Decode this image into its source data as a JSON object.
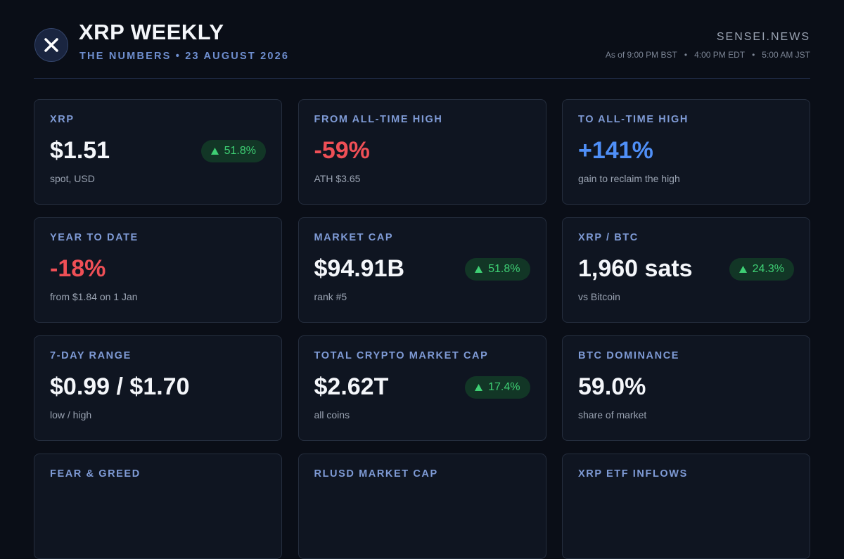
{
  "header": {
    "title": "XRP WEEKLY",
    "subtitle": "THE NUMBERS • 23 AUGUST 2026",
    "brand": "SENSEI.NEWS",
    "times": [
      "As of 9:00 PM BST",
      "4:00 PM EDT",
      "5:00 AM JST"
    ]
  },
  "cards": [
    {
      "label": "XRP",
      "value": "$1.51",
      "color": "#f4f6fa",
      "note": "spot, USD",
      "badge": "51.8%"
    },
    {
      "label": "FROM ALL-TIME HIGH",
      "value": "-59%",
      "color": "#ef4f56",
      "note": "ATH $3.65"
    },
    {
      "label": "TO ALL-TIME HIGH",
      "value": "+141%",
      "color": "#4f8ff7",
      "note": "gain to reclaim the high"
    },
    {
      "label": "YEAR TO DATE",
      "value": "-18%",
      "color": "#ef4f56",
      "note": "from $1.84 on 1 Jan"
    },
    {
      "label": "MARKET CAP",
      "value": "$94.91B",
      "color": "#f4f6fa",
      "note": "rank #5",
      "badge": "51.8%"
    },
    {
      "label": "XRP / BTC",
      "value": "1,960 sats",
      "color": "#f4f6fa",
      "note": "vs Bitcoin",
      "badge": "24.3%"
    },
    {
      "label": "7-DAY RANGE",
      "value": "$0.99 / $1.70",
      "color": "#f4f6fa",
      "note": "low / high"
    },
    {
      "label": "TOTAL CRYPTO MARKET CAP",
      "value": "$2.62T",
      "color": "#f4f6fa",
      "note": "all coins",
      "badge": "17.4%"
    },
    {
      "label": "BTC DOMINANCE",
      "value": "59.0%",
      "color": "#f4f6fa",
      "note": "share of market"
    },
    {
      "label": "FEAR & GREED"
    },
    {
      "label": "RLUSD MARKET CAP"
    },
    {
      "label": "XRP ETF INFLOWS"
    }
  ]
}
